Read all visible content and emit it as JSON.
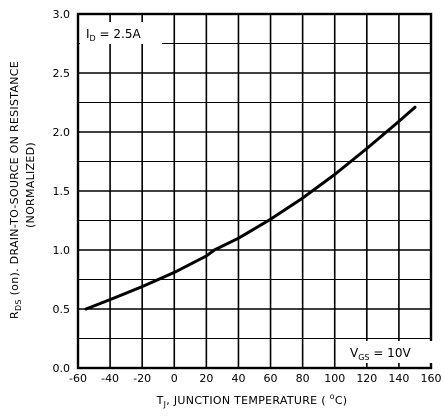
{
  "chart_data": {
    "type": "line",
    "xlabel_main": "T",
    "xlabel_sub": "J",
    "xlabel_rest": ",  JUNCTION TEMPERATURE  ( ",
    "xlabel_unit_sup": "o",
    "xlabel_unit": "C)",
    "ylabel_line1_main": "R",
    "ylabel_line1_sub": "DS",
    "ylabel_line1_rest": " (on).  DRAIN-TO-SOURCE ON RESISTANCE",
    "ylabel_line2": "(NORMALIZED)",
    "xlim": [
      -60,
      160
    ],
    "ylim": [
      0.0,
      3.0
    ],
    "x_ticks": [
      -60,
      -40,
      -20,
      0,
      20,
      40,
      60,
      80,
      100,
      120,
      140,
      160
    ],
    "x_tick_labels": [
      "-60",
      "-40",
      "-20",
      "0",
      "20",
      "40",
      "60",
      "80",
      "100",
      "120",
      "140",
      "160"
    ],
    "y_ticks": [
      0.0,
      0.5,
      1.0,
      1.5,
      2.0,
      2.5,
      3.0
    ],
    "y_tick_labels": [
      "0.0",
      "0.5",
      "1.0",
      "1.5",
      "2.0",
      "2.5",
      "3.0"
    ],
    "grid": true,
    "annotations": {
      "id_main": "I",
      "id_sub": "D",
      "id_rest": " = 2.5A",
      "vgs_main": "V",
      "vgs_sub": "GS",
      "vgs_rest": " = 10V"
    },
    "series": [
      {
        "x": [
          -55,
          -40,
          -20,
          0,
          20,
          25,
          40,
          60,
          80,
          100,
          120,
          140,
          150
        ],
        "y": [
          0.5,
          0.58,
          0.69,
          0.81,
          0.95,
          1.0,
          1.1,
          1.26,
          1.44,
          1.64,
          1.86,
          2.09,
          2.21
        ]
      }
    ]
  }
}
